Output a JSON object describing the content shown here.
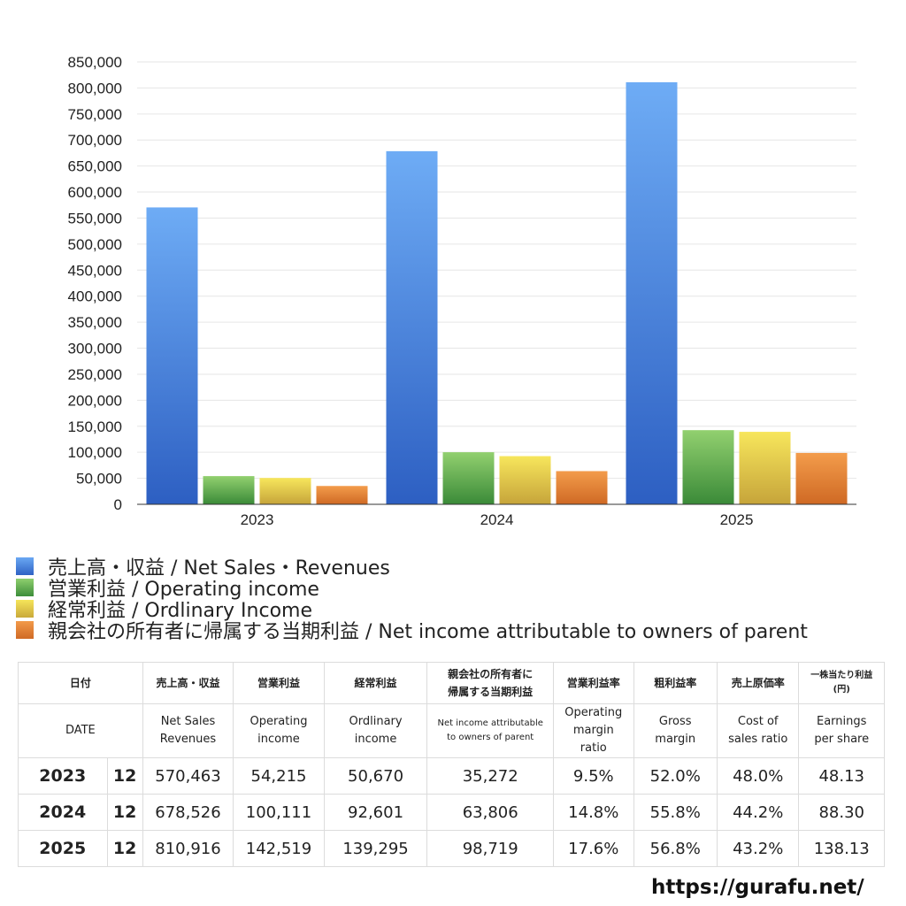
{
  "chart_data": {
    "type": "bar",
    "categories": [
      "2023",
      "2024",
      "2025"
    ],
    "series": [
      {
        "name": "売上高・収益 / Net Sales・Revenues",
        "values": [
          570463,
          678526,
          810916
        ],
        "color": "#4a8be0"
      },
      {
        "name": "営業利益 / Operating income",
        "values": [
          54215,
          100111,
          142519
        ],
        "color": "#4aa548"
      },
      {
        "name": "経常利益 / Ordlinary Income",
        "values": [
          50670,
          92601,
          139295
        ],
        "color": "#e0c83a"
      },
      {
        "name": "親会社の所有者に帰属する当期利益 / Net income attributable to owners of parent",
        "values": [
          35272,
          63806,
          98719
        ],
        "color": "#e07f30"
      }
    ],
    "ylim": [
      0,
      850000
    ],
    "ytick_step": 50000,
    "ytick_labels": [
      "0",
      "50,000",
      "100,000",
      "150,000",
      "200,000",
      "250,000",
      "300,000",
      "350,000",
      "400,000",
      "450,000",
      "500,000",
      "550,000",
      "600,000",
      "650,000",
      "700,000",
      "750,000",
      "800,000",
      "850,000"
    ],
    "grid": true,
    "legend_placement": "bottom-left"
  },
  "table": {
    "header_jp": [
      "日付",
      "売上高・収益",
      "営業利益",
      "経常利益",
      "親会社の所有者に",
      "帰属する当期利益",
      "営業利益率",
      "粗利益率",
      "売上原価率",
      "一株当たり利益",
      "(円)"
    ],
    "header_en": {
      "date": "DATE",
      "net_sales_1": "Net Sales",
      "net_sales_2": "Revenues",
      "op_1": "Operating",
      "op_2": "income",
      "ord_1": "Ordlinary",
      "ord_2": "income",
      "ni_1": "Net income attributable",
      "ni_2": "to owners of parent",
      "opm_1": "Operating",
      "opm_2": "margin",
      "opm_3": "ratio",
      "gm_1": "Gross",
      "gm_2": "margin",
      "cos_1": "Cost of",
      "cos_2": "sales ratio",
      "eps_1": "Earnings",
      "eps_2": "per share"
    },
    "rows": [
      {
        "year": "2023",
        "month": "12",
        "sales": "570,463",
        "op": "54,215",
        "ord": "50,670",
        "ni": "35,272",
        "opm": "9.5%",
        "gm": "52.0%",
        "cos": "48.0%",
        "eps": "48.13"
      },
      {
        "year": "2024",
        "month": "12",
        "sales": "678,526",
        "op": "100,111",
        "ord": "92,601",
        "ni": "63,806",
        "opm": "14.8%",
        "gm": "55.8%",
        "cos": "44.2%",
        "eps": "88.30"
      },
      {
        "year": "2025",
        "month": "12",
        "sales": "810,916",
        "op": "142,519",
        "ord": "139,295",
        "ni": "98,719",
        "opm": "17.6%",
        "gm": "56.8%",
        "cos": "43.2%",
        "eps": "138.13"
      }
    ]
  },
  "watermark": "https://gurafu.net/"
}
